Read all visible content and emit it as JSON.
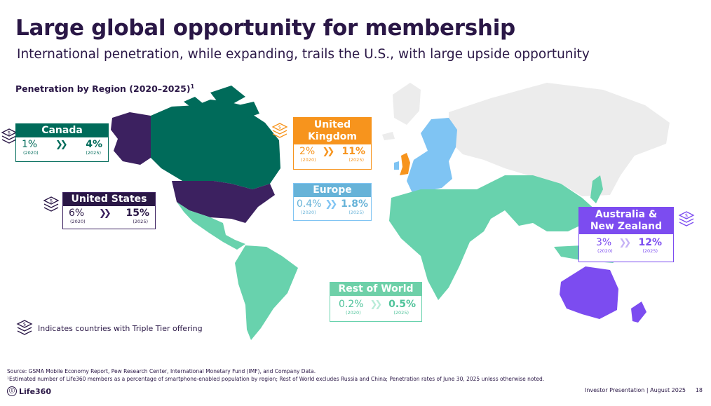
{
  "header": {
    "title": "Large global opportunity for membership",
    "subtitle": "International penetration, while expanding, trails the U.S., with large upside opportunity",
    "section_label": "Penetration by Region (2020–2025)",
    "section_sup": "1"
  },
  "colors": {
    "navy": "#2a1746",
    "canada": "#006b5a",
    "us": "#3c2160",
    "uk": "#f7941d",
    "europe": "#7fc4f3",
    "europe_header": "#67b3d8",
    "anz": "#7c4cf0",
    "row": "#68d2ad",
    "row_header": "#6ed0a8",
    "other": "#ececec"
  },
  "regions": {
    "canada": {
      "name": "Canada",
      "v2020": "1%",
      "v2025": "4%",
      "y2020": "(2020)",
      "y2025": "(2025)",
      "arrows": "❯❯"
    },
    "us": {
      "name": "United States",
      "v2020": "6%",
      "v2025": "15%",
      "y2020": "(2020)",
      "y2025": "(2025)",
      "arrows": "❯❯"
    },
    "uk": {
      "name": "United Kingdom",
      "v2020": "2%",
      "v2025": "11%",
      "y2020": "(2020)",
      "y2025": "(2025)",
      "arrows": "❯❯"
    },
    "europe": {
      "name": "Europe",
      "v2020": "0.4%",
      "v2025": "1.8%",
      "y2020": "(2020)",
      "y2025": "(2025)",
      "arrows": "❯❯"
    },
    "anz": {
      "name": "Australia & New Zealand",
      "v2020": "3%",
      "v2025": "12%",
      "y2020": "(2020)",
      "y2025": "(2025)",
      "arrows": "❯❯"
    },
    "row": {
      "name": "Rest of World",
      "v2020": "0.2%",
      "v2025": "0.5%",
      "y2020": "(2020)",
      "y2025": "(2025)",
      "arrows": "❯❯"
    }
  },
  "legend": {
    "icon": "dollar-stack-icon",
    "text": "Indicates countries with Triple Tier offering"
  },
  "footer": {
    "source": "Source: GSMA Mobile Economy Report, Pew Research Center, International Monetary Fund (IMF), and Company Data.",
    "note": "¹Estimated number of Life360 members as a percentage of smartphone-enabled population by region; Rest of World excludes Russia and China; Penetration rates of June 30, 2025 unless otherwise noted.",
    "brand": "Life360",
    "presentation": "Investor Presentation | August 2025",
    "page": "18"
  }
}
